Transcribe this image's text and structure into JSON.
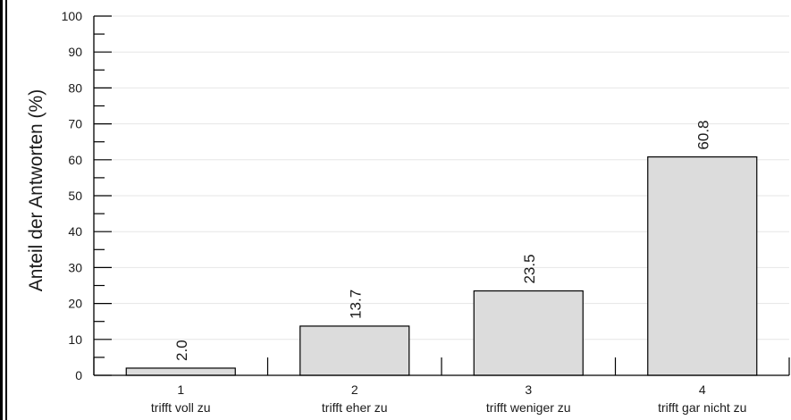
{
  "chart_data": {
    "type": "bar",
    "title": "",
    "xlabel": "",
    "ylabel": "Anteil der Antworten (%)",
    "ylim": [
      0,
      100
    ],
    "y_ticks": [
      "0",
      "10",
      "20",
      "30",
      "40",
      "50",
      "60",
      "70",
      "80",
      "90",
      "100"
    ],
    "categories": [
      {
        "code": "1",
        "label": "trifft voll zu"
      },
      {
        "code": "2",
        "label": "trifft eher zu"
      },
      {
        "code": "3",
        "label": "trifft weniger zu"
      },
      {
        "code": "4",
        "label": "trifft gar nicht zu"
      }
    ],
    "values": [
      2.0,
      13.7,
      23.5,
      60.8
    ],
    "value_labels": [
      "2.0",
      "13.7",
      "23.5",
      "60.8"
    ],
    "grid": true,
    "legend": "none",
    "colors": {
      "bar_fill": "#dcdcdc",
      "bar_stroke": "#000000",
      "grid": "#e6e6e6",
      "axis": "#000000"
    }
  }
}
